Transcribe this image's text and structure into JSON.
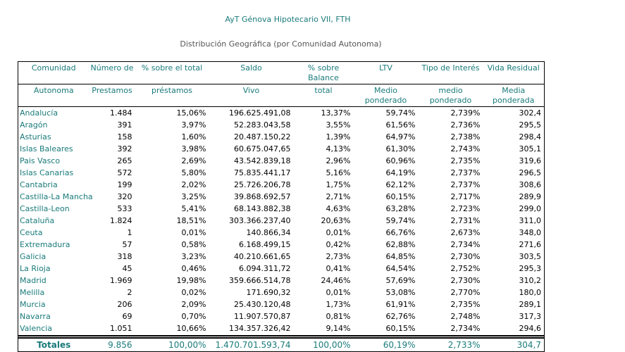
{
  "title": "AyT Génova Hipotecario VII, FTH",
  "subtitle": "Distribución Geográfica (por Comunidad Autonoma)",
  "headers": [
    [
      "Comunidad",
      "Autonoma"
    ],
    [
      "Número de",
      "Prestamos"
    ],
    [
      "% sobre el total",
      "préstamos"
    ],
    [
      "Saldo",
      "Vivo"
    ],
    [
      "% sobre Balance",
      "total"
    ],
    [
      "LTV",
      "Medio ponderado"
    ],
    [
      "Tipo de Interés",
      "medio ponderado"
    ],
    [
      "Vida Residual",
      "Media ponderada"
    ]
  ],
  "rows": [
    [
      "Andalucía",
      "1.484",
      "15,06%",
      "196.625.491,08",
      "13,37%",
      "59,74%",
      "2,739%",
      "302,4"
    ],
    [
      "Aragón",
      "391",
      "3,97%",
      "52.283.043,58",
      "3,55%",
      "61,56%",
      "2,736%",
      "295,5"
    ],
    [
      "Asturias",
      "158",
      "1,60%",
      "20.487.150,22",
      "1,39%",
      "64,97%",
      "2,738%",
      "298,4"
    ],
    [
      "Islas Baleares",
      "392",
      "3,98%",
      "60.675.047,65",
      "4,13%",
      "61,30%",
      "2,743%",
      "305,1"
    ],
    [
      "Pais Vasco",
      "265",
      "2,69%",
      "43.542.839,18",
      "2,96%",
      "60,96%",
      "2,735%",
      "319,6"
    ],
    [
      "Islas Canarias",
      "572",
      "5,80%",
      "75.835.441,17",
      "5,16%",
      "64,19%",
      "2,737%",
      "296,5"
    ],
    [
      "Cantabria",
      "199",
      "2,02%",
      "25.726.206,78",
      "1,75%",
      "62,12%",
      "2,737%",
      "308,6"
    ],
    [
      "Castilla-La Mancha",
      "320",
      "3,25%",
      "39.868.692,57",
      "2,71%",
      "60,15%",
      "2,717%",
      "289,9"
    ],
    [
      "Castilla-Leon",
      "533",
      "5,41%",
      "68.143.882,38",
      "4,63%",
      "63,28%",
      "2,723%",
      "299,0"
    ],
    [
      "Cataluña",
      "1.824",
      "18,51%",
      "303.366.237,40",
      "20,63%",
      "59,74%",
      "2,731%",
      "311,0"
    ],
    [
      "Ceuta",
      "1",
      "0,01%",
      "140.866,34",
      "0,01%",
      "66,76%",
      "2,673%",
      "348,0"
    ],
    [
      "Extremadura",
      "57",
      "0,58%",
      "6.168.499,15",
      "0,42%",
      "62,88%",
      "2,734%",
      "271,6"
    ],
    [
      "Galicia",
      "318",
      "3,23%",
      "40.210.661,65",
      "2,73%",
      "64,85%",
      "2,730%",
      "303,5"
    ],
    [
      "La Rioja",
      "45",
      "0,46%",
      "6.094.311,72",
      "0,41%",
      "64,54%",
      "2,752%",
      "295,3"
    ],
    [
      "Madrid",
      "1.969",
      "19,98%",
      "359.666.514,78",
      "24,46%",
      "57,69%",
      "2,730%",
      "310,2"
    ],
    [
      "Melilla",
      "2",
      "0,02%",
      "171.690,32",
      "0,01%",
      "53,08%",
      "2,770%",
      "180,0"
    ],
    [
      "Murcia",
      "206",
      "2,09%",
      "25.430.120,48",
      "1,73%",
      "61,91%",
      "2,735%",
      "289,1"
    ],
    [
      "Navarra",
      "69",
      "0,70%",
      "11.907.570,87",
      "0,81%",
      "62,76%",
      "2,748%",
      "317,3"
    ],
    [
      "Valencia",
      "1.051",
      "10,66%",
      "134.357.326,42",
      "9,14%",
      "60,15%",
      "2,734%",
      "294,6"
    ]
  ],
  "totals": [
    "Totales",
    "9.856",
    "100,00%",
    "1.470.701.593,74",
    "100,00%",
    "60,19%",
    "2,733%",
    "304,7"
  ],
  "colors": {
    "accent": "#1a7a7a",
    "text": "#000000",
    "muted": "#555555"
  }
}
